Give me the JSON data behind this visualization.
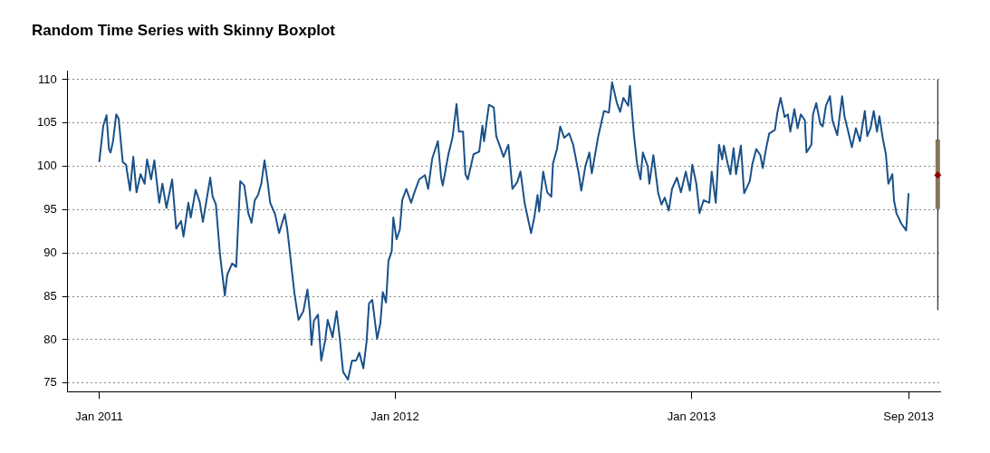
{
  "chart_data": {
    "type": "line",
    "title": "Random Time Series with Skinny Boxplot",
    "grid": "y",
    "xlim": [
      "2010-11-23",
      "2013-11-04"
    ],
    "xticks": [
      {
        "value": "2011-01-01",
        "label": "Jan 2011"
      },
      {
        "value": "2012-01-01",
        "label": "Jan 2012"
      },
      {
        "value": "2013-01-01",
        "label": "Jan 2013"
      },
      {
        "value": "2013-09-26",
        "label": "Sep 2013"
      }
    ],
    "ylim": [
      74,
      111
    ],
    "yticks": [
      75,
      80,
      85,
      90,
      95,
      100,
      105,
      110
    ],
    "series": [
      {
        "color": "#1a5189",
        "x": [
          "2011-01-01",
          "2011-01-03",
          "2011-01-06",
          "2011-01-10",
          "2011-01-13",
          "2011-01-15",
          "2011-01-18",
          "2011-01-22",
          "2011-01-25",
          "2011-01-30",
          "2011-02-03",
          "2011-02-08",
          "2011-02-12",
          "2011-02-16",
          "2011-02-21",
          "2011-02-26",
          "2011-03-01",
          "2011-03-06",
          "2011-03-10",
          "2011-03-16",
          "2011-03-20",
          "2011-03-25",
          "2011-04-01",
          "2011-04-06",
          "2011-04-12",
          "2011-04-15",
          "2011-04-21",
          "2011-04-24",
          "2011-04-30",
          "2011-05-05",
          "2011-05-09",
          "2011-05-18",
          "2011-05-21",
          "2011-05-25",
          "2011-05-30",
          "2011-06-05",
          "2011-06-08",
          "2011-06-14",
          "2011-06-19",
          "2011-06-24",
          "2011-06-29",
          "2011-07-04",
          "2011-07-08",
          "2011-07-12",
          "2011-07-16",
          "2011-07-20",
          "2011-07-24",
          "2011-07-28",
          "2011-07-31",
          "2011-08-06",
          "2011-08-11",
          "2011-08-18",
          "2011-08-21",
          "2011-08-25",
          "2011-08-30",
          "2011-09-04",
          "2011-09-10",
          "2011-09-15",
          "2011-09-18",
          "2011-09-20",
          "2011-09-23",
          "2011-09-28",
          "2011-10-02",
          "2011-10-07",
          "2011-10-10",
          "2011-10-16",
          "2011-10-21",
          "2011-10-25",
          "2011-10-29",
          "2011-11-04",
          "2011-11-09",
          "2011-11-14",
          "2011-11-18",
          "2011-11-23",
          "2011-11-27",
          "2011-11-30",
          "2011-12-04",
          "2011-12-10",
          "2011-12-14",
          "2011-12-17",
          "2011-12-21",
          "2011-12-24",
          "2011-12-28",
          "2011-12-30",
          "2012-01-03",
          "2012-01-07",
          "2012-01-10",
          "2012-01-15",
          "2012-01-21",
          "2012-01-25",
          "2012-01-31",
          "2012-02-07",
          "2012-02-11",
          "2012-02-16",
          "2012-02-23",
          "2012-02-27",
          "2012-02-29",
          "2012-03-07",
          "2012-03-12",
          "2012-03-17",
          "2012-03-20",
          "2012-03-25",
          "2012-03-28",
          "2012-03-31",
          "2012-04-07",
          "2012-04-14",
          "2012-04-18",
          "2012-04-20",
          "2012-04-26",
          "2012-05-02",
          "2012-05-05",
          "2012-05-10",
          "2012-05-14",
          "2012-05-20",
          "2012-05-25",
          "2012-05-31",
          "2012-06-04",
          "2012-06-09",
          "2012-06-17",
          "2012-06-21",
          "2012-06-25",
          "2012-06-27",
          "2012-07-02",
          "2012-07-07",
          "2012-07-12",
          "2012-07-14",
          "2012-07-19",
          "2012-07-23",
          "2012-07-28",
          "2012-08-03",
          "2012-08-08",
          "2012-08-15",
          "2012-08-18",
          "2012-08-23",
          "2012-08-28",
          "2012-08-31",
          "2012-09-08",
          "2012-09-15",
          "2012-09-21",
          "2012-09-25",
          "2012-10-01",
          "2012-10-05",
          "2012-10-09",
          "2012-10-15",
          "2012-10-17",
          "2012-10-22",
          "2012-10-26",
          "2012-10-30",
          "2012-11-02",
          "2012-11-08",
          "2012-11-10",
          "2012-11-15",
          "2012-11-21",
          "2012-11-25",
          "2012-11-29",
          "2012-12-04",
          "2012-12-08",
          "2012-12-14",
          "2012-12-19",
          "2012-12-25",
          "2012-12-30",
          "2013-01-02",
          "2013-01-07",
          "2013-01-11",
          "2013-01-16",
          "2013-01-23",
          "2013-01-26",
          "2013-01-31",
          "2013-02-04",
          "2013-02-08",
          "2013-02-10",
          "2013-02-15",
          "2013-02-18",
          "2013-02-22",
          "2013-02-25",
          "2013-03-03",
          "2013-03-07",
          "2013-03-14",
          "2013-03-17",
          "2013-03-22",
          "2013-03-27",
          "2013-03-30",
          "2013-04-03",
          "2013-04-07",
          "2013-04-14",
          "2013-04-17",
          "2013-04-21",
          "2013-04-26",
          "2013-04-30",
          "2013-05-03",
          "2013-05-08",
          "2013-05-12",
          "2013-05-16",
          "2013-05-21",
          "2013-05-23",
          "2013-05-29",
          "2013-05-31",
          "2013-06-04",
          "2013-06-09",
          "2013-06-12",
          "2013-06-16",
          "2013-06-21",
          "2013-06-24",
          "2013-06-30",
          "2013-07-06",
          "2013-07-09",
          "2013-07-13",
          "2013-07-18",
          "2013-07-23",
          "2013-07-28",
          "2013-08-03",
          "2013-08-06",
          "2013-08-10",
          "2013-08-14",
          "2013-08-18",
          "2013-08-21",
          "2013-08-25",
          "2013-08-29",
          "2013-09-01",
          "2013-09-06",
          "2013-09-08",
          "2013-09-11",
          "2013-09-17",
          "2013-09-23",
          "2013-09-26"
        ],
        "values": [
          100.5,
          102.2,
          104.7,
          105.9,
          102.0,
          101.6,
          102.9,
          106.0,
          105.5,
          100.5,
          100.2,
          97.2,
          101.1,
          97.0,
          99.1,
          98.0,
          100.8,
          98.5,
          100.7,
          95.8,
          98.0,
          95.2,
          98.5,
          92.8,
          93.7,
          91.9,
          95.8,
          94.1,
          97.3,
          95.9,
          93.6,
          98.7,
          96.5,
          95.6,
          89.9,
          85.1,
          87.5,
          88.8,
          88.4,
          98.3,
          97.8,
          94.6,
          93.5,
          96.1,
          96.7,
          98.0,
          100.7,
          98.1,
          95.8,
          94.5,
          92.3,
          94.5,
          92.8,
          89.5,
          85.3,
          82.3,
          83.3,
          85.8,
          83.1,
          79.4,
          82.2,
          82.9,
          77.6,
          80.0,
          82.3,
          80.3,
          83.3,
          80.1,
          76.3,
          75.4,
          77.6,
          77.6,
          78.5,
          76.7,
          79.8,
          84.2,
          84.6,
          80.1,
          81.9,
          85.5,
          84.3,
          89.1,
          90.2,
          94.1,
          91.6,
          92.7,
          96.1,
          97.4,
          95.8,
          97.0,
          98.5,
          99.0,
          97.4,
          100.9,
          102.9,
          98.7,
          97.8,
          101.4,
          103.3,
          107.2,
          104.0,
          104.0,
          99.1,
          98.5,
          101.4,
          101.7,
          104.7,
          102.9,
          107.1,
          106.8,
          103.5,
          102.2,
          101.1,
          102.5,
          97.4,
          98.2,
          99.4,
          95.8,
          92.3,
          94.1,
          96.7,
          94.8,
          99.4,
          97.0,
          96.5,
          100.3,
          102.0,
          104.6,
          103.3,
          103.8,
          102.5,
          99.1,
          97.2,
          100.0,
          101.6,
          99.2,
          103.5,
          106.4,
          106.2,
          109.7,
          107.3,
          106.3,
          107.9,
          107.0,
          109.3,
          103.6,
          100.2,
          98.5,
          101.6,
          100.0,
          98.0,
          101.3,
          96.9,
          95.6,
          96.4,
          94.9,
          97.4,
          98.7,
          97.0,
          99.4,
          97.2,
          100.2,
          98.0,
          94.6,
          96.1,
          95.8,
          99.4,
          95.8,
          102.5,
          100.8,
          102.4,
          100.2,
          99.1,
          102.1,
          99.1,
          102.4,
          96.9,
          98.3,
          100.2,
          102.0,
          101.3,
          99.8,
          102.0,
          103.8,
          104.2,
          106.2,
          107.9,
          105.7,
          106.0,
          104.0,
          106.6,
          104.4,
          106.0,
          105.3,
          101.6,
          102.5,
          106.0,
          107.3,
          104.9,
          104.6,
          107.0,
          108.1,
          105.3,
          103.6,
          108.1,
          105.7,
          104.2,
          102.2,
          104.4,
          102.9,
          106.4,
          103.5,
          104.4,
          106.4,
          104.0,
          105.8,
          103.3,
          101.4,
          98.0,
          99.1,
          96.1,
          94.6,
          93.4,
          92.6,
          96.9
        ]
      },
      {
        "type": "box",
        "color": "#857659",
        "x": [
          "2013-11-01"
        ],
        "boxes": [
          {
            "low": 83.4,
            "q1": 95.1,
            "median": 99.0,
            "q3": 103.1,
            "high": 110
          }
        ]
      }
    ]
  }
}
